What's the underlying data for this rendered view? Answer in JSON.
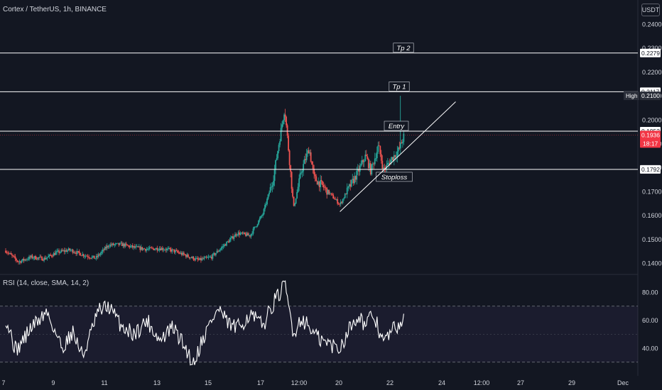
{
  "header": {
    "symbol_title": "Cortex / TetherUS, 1h, BINANCE",
    "currency_button": "USDT"
  },
  "rsi_panel": {
    "title": "RSI (14, close, SMA, 14, 2)",
    "ticks": [
      "80.00",
      "60.00",
      "40.00"
    ],
    "upper_band": 70,
    "lower_band": 30,
    "middle_band": 50
  },
  "colors": {
    "background": "#131722",
    "up_candle": "#26a69a",
    "down_candle": "#ef5350",
    "level_line": "#ffffff",
    "text": "#d1d4dc",
    "current_price_tag": "#f23645"
  },
  "chart_data": [
    {
      "type": "candlestick",
      "title": "Cortex / TetherUS, 1h, BINANCE",
      "ylim": [
        0.135,
        0.245
      ],
      "y_ticks": [
        "0.2400",
        "0.2300",
        "0.2200",
        "0.2100",
        "0.2000",
        "0.1900",
        "0.1800",
        "0.1700",
        "0.1600",
        "0.1500",
        "0.1400"
      ],
      "x_ticks": [
        "7",
        "9",
        "11",
        "13",
        "15",
        "17",
        "12:00",
        "20",
        "22",
        "24",
        "12:00",
        "27",
        "29",
        "Dec"
      ],
      "price_path": [
        {
          "t": 0.0,
          "p": 0.1452
        },
        {
          "t": 0.5,
          "p": 0.1405
        },
        {
          "t": 1.0,
          "p": 0.1425
        },
        {
          "t": 1.5,
          "p": 0.1418
        },
        {
          "t": 2.0,
          "p": 0.1445
        },
        {
          "t": 2.5,
          "p": 0.1455
        },
        {
          "t": 3.0,
          "p": 0.1435
        },
        {
          "t": 3.5,
          "p": 0.142
        },
        {
          "t": 4.0,
          "p": 0.1475
        },
        {
          "t": 4.5,
          "p": 0.1478
        },
        {
          "t": 5.0,
          "p": 0.1465
        },
        {
          "t": 5.5,
          "p": 0.1458
        },
        {
          "t": 6.0,
          "p": 0.1462
        },
        {
          "t": 6.5,
          "p": 0.1452
        },
        {
          "t": 7.0,
          "p": 0.1432
        },
        {
          "t": 7.5,
          "p": 0.1412
        },
        {
          "t": 8.0,
          "p": 0.1425
        },
        {
          "t": 8.5,
          "p": 0.1475
        },
        {
          "t": 9.0,
          "p": 0.1525
        },
        {
          "t": 9.5,
          "p": 0.1515
        },
        {
          "t": 10.0,
          "p": 0.1605
        },
        {
          "t": 10.4,
          "p": 0.175
        },
        {
          "t": 10.7,
          "p": 0.195
        },
        {
          "t": 10.85,
          "p": 0.205
        },
        {
          "t": 11.0,
          "p": 0.1875
        },
        {
          "t": 11.2,
          "p": 0.163
        },
        {
          "t": 11.5,
          "p": 0.1785
        },
        {
          "t": 11.8,
          "p": 0.188
        },
        {
          "t": 12.0,
          "p": 0.1755
        },
        {
          "t": 12.3,
          "p": 0.1725
        },
        {
          "t": 12.7,
          "p": 0.168
        },
        {
          "t": 13.0,
          "p": 0.1645
        },
        {
          "t": 13.3,
          "p": 0.1705
        },
        {
          "t": 13.7,
          "p": 0.178
        },
        {
          "t": 14.0,
          "p": 0.185
        },
        {
          "t": 14.2,
          "p": 0.1785
        },
        {
          "t": 14.5,
          "p": 0.189
        },
        {
          "t": 14.7,
          "p": 0.1785
        },
        {
          "t": 15.0,
          "p": 0.1835
        },
        {
          "t": 15.3,
          "p": 0.1875
        },
        {
          "t": 15.5,
          "p": 0.1935
        }
      ],
      "levels": [
        {
          "label": "Tp 2",
          "price": 0.2279
        },
        {
          "label": "Tp 1",
          "price": 0.2117
        },
        {
          "label": "Entry",
          "price": 0.1952
        },
        {
          "label": "Stoploss",
          "price": 0.1792
        }
      ],
      "trendline": [
        {
          "t": 13.0,
          "p": 0.1615
        },
        {
          "t": 17.5,
          "p": 0.2075
        }
      ],
      "price_tags": [
        {
          "text": "0.2279",
          "price": 0.2279,
          "style": "white"
        },
        {
          "text": "0.2117",
          "price": 0.2117,
          "style": "white"
        },
        {
          "text": "0.2100",
          "price": 0.21,
          "style": "dark",
          "caption": "High"
        },
        {
          "text": "0.1952",
          "price": 0.1952,
          "style": "white"
        },
        {
          "text": "0.1936",
          "price": 0.1936,
          "style": "red",
          "sub": "18:17"
        },
        {
          "text": "0.1792",
          "price": 0.1792,
          "style": "white"
        }
      ],
      "rsi": {
        "ylim": [
          25,
          90
        ],
        "path": [
          {
            "t": 0.0,
            "v": 62
          },
          {
            "t": 0.4,
            "v": 38
          },
          {
            "t": 1.0,
            "v": 55
          },
          {
            "t": 1.6,
            "v": 66
          },
          {
            "t": 2.2,
            "v": 40
          },
          {
            "t": 2.6,
            "v": 52
          },
          {
            "t": 3.0,
            "v": 34
          },
          {
            "t": 3.6,
            "v": 66
          },
          {
            "t": 4.0,
            "v": 70
          },
          {
            "t": 4.5,
            "v": 56
          },
          {
            "t": 5.0,
            "v": 50
          },
          {
            "t": 5.5,
            "v": 60
          },
          {
            "t": 6.0,
            "v": 45
          },
          {
            "t": 6.5,
            "v": 55
          },
          {
            "t": 7.0,
            "v": 40
          },
          {
            "t": 7.3,
            "v": 29
          },
          {
            "t": 7.6,
            "v": 44
          },
          {
            "t": 8.0,
            "v": 60
          },
          {
            "t": 8.3,
            "v": 68
          },
          {
            "t": 8.6,
            "v": 58
          },
          {
            "t": 9.0,
            "v": 54
          },
          {
            "t": 9.5,
            "v": 64
          },
          {
            "t": 10.0,
            "v": 56
          },
          {
            "t": 10.4,
            "v": 72
          },
          {
            "t": 10.7,
            "v": 80
          },
          {
            "t": 10.85,
            "v": 86
          },
          {
            "t": 11.2,
            "v": 50
          },
          {
            "t": 11.5,
            "v": 62
          },
          {
            "t": 11.8,
            "v": 55
          },
          {
            "t": 12.2,
            "v": 46
          },
          {
            "t": 12.7,
            "v": 42
          },
          {
            "t": 13.0,
            "v": 40
          },
          {
            "t": 13.3,
            "v": 52
          },
          {
            "t": 13.7,
            "v": 64
          },
          {
            "t": 14.0,
            "v": 56
          },
          {
            "t": 14.3,
            "v": 64
          },
          {
            "t": 14.7,
            "v": 44
          },
          {
            "t": 15.0,
            "v": 52
          },
          {
            "t": 15.3,
            "v": 57
          },
          {
            "t": 15.5,
            "v": 63
          }
        ]
      }
    }
  ]
}
